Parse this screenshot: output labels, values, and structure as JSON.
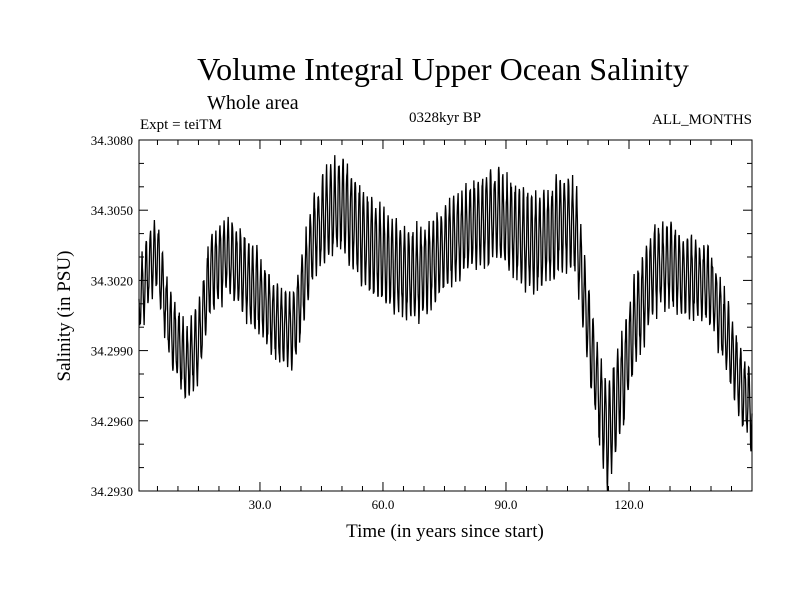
{
  "chart_data": {
    "type": "line",
    "title": "Volume Integral Upper Ocean Salinity",
    "subtitle": "Whole area",
    "experiment_label": "Expt = teiTM",
    "period_label": "0328kyr BP",
    "months_label": "ALL_MONTHS",
    "xlabel": "Time (in years since start)",
    "ylabel": "Salinity (in PSU)",
    "xlim": [
      0.5,
      150
    ],
    "ylim": [
      34.293,
      34.308
    ],
    "xticks": [
      30,
      60,
      90,
      120
    ],
    "xtick_labels": [
      "30.0",
      "60.0",
      "90.0",
      "120.0"
    ],
    "yticks": [
      34.293,
      34.296,
      34.299,
      34.302,
      34.305,
      34.308
    ],
    "ytick_labels": [
      "34.2930",
      "34.2960",
      "34.2990",
      "34.3020",
      "34.3050",
      "34.3080"
    ],
    "grid": false,
    "samples_per_year": 12,
    "series": [
      {
        "name": "salinity",
        "annual_mean": {
          "x": [
            1,
            3,
            5,
            8,
            12,
            15,
            18,
            22,
            26,
            30,
            34,
            38,
            40,
            43,
            46,
            50,
            55,
            60,
            64,
            68,
            72,
            76,
            80,
            84,
            88,
            92,
            96,
            100,
            104,
            107,
            110,
            113,
            115,
            118,
            122,
            126,
            130,
            133,
            136,
            140,
            143,
            146,
            148.5,
            150
          ],
          "y": [
            34.3013,
            34.3027,
            34.303,
            34.3,
            34.2983,
            34.2994,
            34.3024,
            34.3031,
            34.3022,
            34.3014,
            34.3002,
            34.2998,
            34.3013,
            34.3038,
            34.3048,
            34.3053,
            34.3039,
            34.303,
            34.3025,
            34.3022,
            34.3028,
            34.3035,
            34.3041,
            34.3046,
            34.3048,
            34.3041,
            34.3035,
            34.3038,
            34.3046,
            34.3042,
            34.3,
            34.2967,
            34.2953,
            34.2975,
            34.3005,
            34.3025,
            34.3027,
            34.3022,
            34.3021,
            34.3017,
            34.3,
            34.2983,
            34.297,
            34.2964
          ]
        },
        "seasonal_amplitude": {
          "x": [
            1,
            20,
            40,
            50,
            80,
            95,
            110,
            115,
            140,
            150
          ],
          "y": [
            0.0014,
            0.0016,
            0.0015,
            0.0019,
            0.0017,
            0.0019,
            0.0017,
            0.002,
            0.0015,
            0.0015
          ]
        }
      }
    ]
  }
}
